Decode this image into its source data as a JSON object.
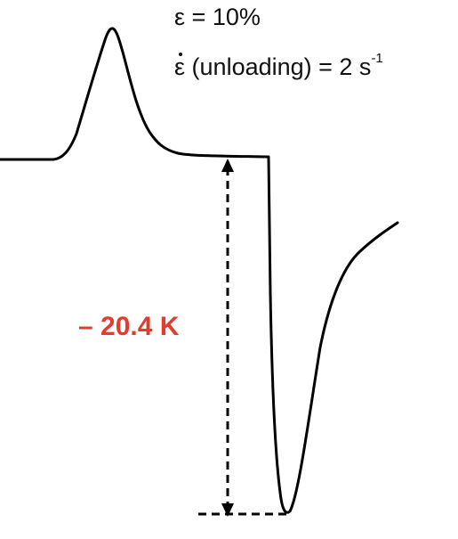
{
  "annotations": {
    "strain_symbol": "ε",
    "strain_text": " = 10%",
    "rate_symbol": "ε",
    "rate_text": " (unloading) = 2 s",
    "rate_exponent": "-1",
    "temperature_change": "– 20.4 K"
  },
  "colors": {
    "curve": "#000000",
    "dimension_line": "#000000",
    "highlight": "#e53a2e"
  }
}
